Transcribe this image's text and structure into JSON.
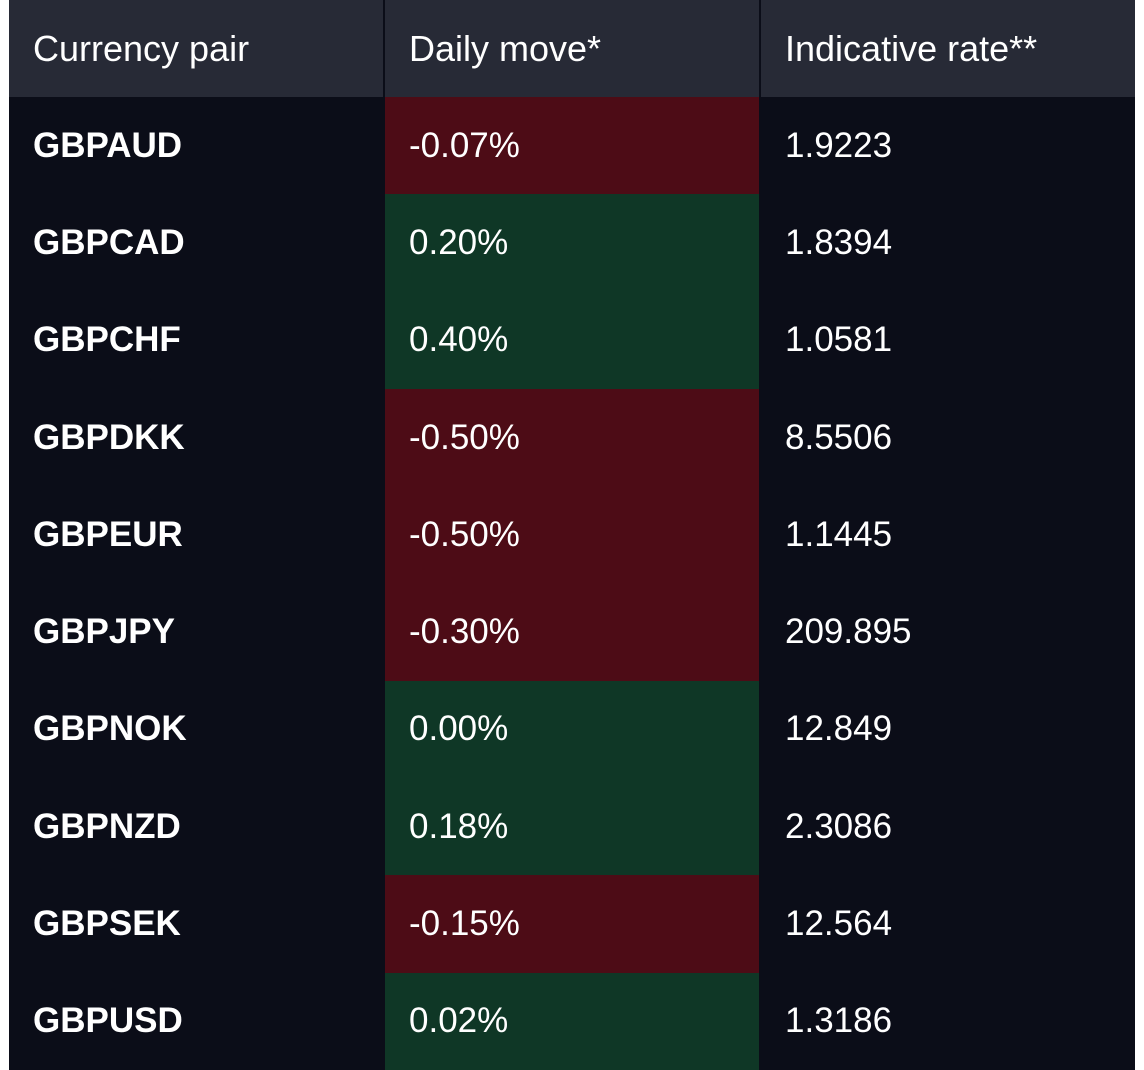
{
  "table": {
    "headers": {
      "pair": "Currency pair",
      "move": "Daily move*",
      "rate": "Indicative rate**"
    },
    "colors": {
      "background": "#0b0d18",
      "header": "#272a36",
      "positive": "#0f3726",
      "negative": "#4d0c16",
      "text": "#ffffff"
    },
    "rows": [
      {
        "pair": "GBPAUD",
        "move": "-0.07%",
        "direction": "down",
        "rate": "1.9223"
      },
      {
        "pair": "GBPCAD",
        "move": "0.20%",
        "direction": "up",
        "rate": "1.8394"
      },
      {
        "pair": "GBPCHF",
        "move": "0.40%",
        "direction": "up",
        "rate": "1.0581"
      },
      {
        "pair": "GBPDKK",
        "move": "-0.50%",
        "direction": "down",
        "rate": "8.5506"
      },
      {
        "pair": "GBPEUR",
        "move": "-0.50%",
        "direction": "down",
        "rate": "1.1445"
      },
      {
        "pair": "GBPJPY",
        "move": "-0.30%",
        "direction": "down",
        "rate": "209.895"
      },
      {
        "pair": "GBPNOK",
        "move": "0.00%",
        "direction": "up",
        "rate": "12.849"
      },
      {
        "pair": "GBPNZD",
        "move": "0.18%",
        "direction": "up",
        "rate": "2.3086"
      },
      {
        "pair": "GBPSEK",
        "move": "-0.15%",
        "direction": "down",
        "rate": "12.564"
      },
      {
        "pair": "GBPUSD",
        "move": "0.02%",
        "direction": "up",
        "rate": "1.3186"
      }
    ]
  }
}
